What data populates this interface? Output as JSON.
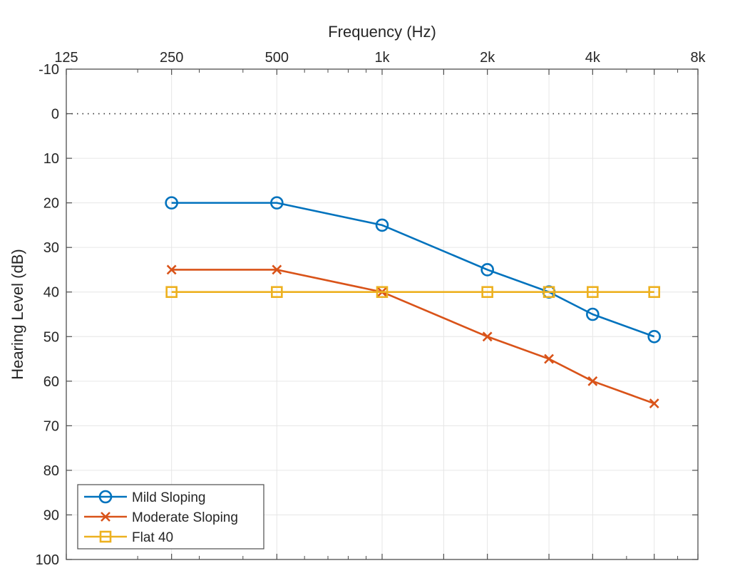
{
  "chart_data": {
    "type": "line",
    "title": "",
    "xlabel": "Frequency (Hz)",
    "ylabel": "Hearing Level (dB)",
    "x_scale": "log2",
    "x_axis_location": "top",
    "y_direction": "reversed",
    "xlim": [
      125,
      8000
    ],
    "ylim": [
      -10,
      100
    ],
    "x_ticks": [
      {
        "value": 125,
        "label": "125"
      },
      {
        "value": 250,
        "label": "250"
      },
      {
        "value": 500,
        "label": "500"
      },
      {
        "value": 1000,
        "label": "1k"
      },
      {
        "value": 2000,
        "label": "2k"
      },
      {
        "value": 4000,
        "label": "4k"
      },
      {
        "value": 8000,
        "label": "8k"
      }
    ],
    "x_gridlines": [
      250,
      500,
      1000,
      1500,
      2000,
      3000,
      4000,
      6000
    ],
    "x_minor_ticks": [
      200,
      300,
      400,
      600,
      700,
      800,
      900,
      5000,
      7000
    ],
    "x_extra_ticks": [
      1500,
      3000,
      6000
    ],
    "y_ticks": [
      -10,
      0,
      10,
      20,
      30,
      40,
      50,
      60,
      70,
      80,
      90,
      100
    ],
    "y_tick_labels": [
      "-10",
      "0",
      "10",
      "20",
      "30",
      "40",
      "50",
      "60",
      "70",
      "80",
      "90",
      "100"
    ],
    "reference_line": {
      "y": 0,
      "style": "dotted"
    },
    "grid": true,
    "x": [
      250,
      500,
      1000,
      2000,
      3000,
      4000,
      6000
    ],
    "series": [
      {
        "name": "Mild Sloping",
        "marker": "circle",
        "color": "#0072BD",
        "values": [
          20,
          20,
          25,
          35,
          40,
          45,
          50
        ]
      },
      {
        "name": "Moderate Sloping",
        "marker": "x",
        "color": "#D95319",
        "values": [
          35,
          35,
          40,
          50,
          55,
          60,
          65
        ]
      },
      {
        "name": "Flat 40",
        "marker": "square",
        "color": "#EDB120",
        "values": [
          40,
          40,
          40,
          40,
          40,
          40,
          40
        ]
      }
    ],
    "legend": {
      "placement": "bottom-left"
    }
  }
}
